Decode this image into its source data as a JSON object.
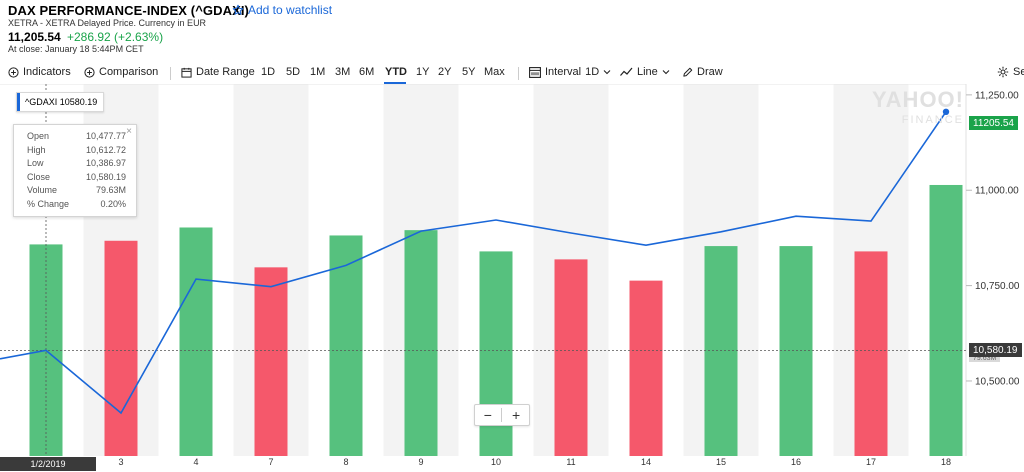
{
  "header": {
    "title": "DAX PERFORMANCE-INDEX (^GDAXI)",
    "watchlist_label": "Add to watchlist",
    "subtitle": "XETRA - XETRA Delayed Price. Currency in EUR",
    "price": "11,205.54",
    "change": "+286.92 (+2.63%)",
    "close_time": "At close: January 18 5:44PM CET"
  },
  "toolbar": {
    "indicators": "Indicators",
    "comparison": "Comparison",
    "date_range": "Date Range",
    "ranges": [
      "1D",
      "5D",
      "1M",
      "3M",
      "6M",
      "YTD",
      "1Y",
      "2Y",
      "5Y",
      "Max"
    ],
    "selected_range": "YTD",
    "interval": "Interval",
    "interval_value": "1D",
    "line": "Line",
    "draw": "Draw",
    "settings": "Se"
  },
  "legend": {
    "label": "^GDAXI 10580.19"
  },
  "tooltip": {
    "rows": [
      {
        "k": "Open",
        "v": "10,477.77"
      },
      {
        "k": "High",
        "v": "10,612.72"
      },
      {
        "k": "Low",
        "v": "10,386.97"
      },
      {
        "k": "Close",
        "v": "10,580.19"
      },
      {
        "k": "Volume",
        "v": "79.63M"
      },
      {
        "k": "% Change",
        "v": "0.20%"
      }
    ],
    "close_glyph": "×"
  },
  "watermark": {
    "top": "YAHOO!",
    "bottom": "FINANCE"
  },
  "tags": {
    "last_price": "11205.54",
    "crosshair_price": "10,580.19",
    "crosshair_volume": "79.63M",
    "crosshair_date": "1/2/2019"
  },
  "zoom": {
    "minus": "−",
    "plus": "+"
  },
  "colors": {
    "line": "#1a67d8",
    "up": "#56c17e",
    "down": "#f5586b",
    "band": "#f3f3f3",
    "last_tag": "#1aa34a"
  },
  "chart_data": {
    "type": "line",
    "title": "DAX PERFORMANCE-INDEX (^GDAXI)",
    "categories": [
      "1/2/2019",
      "3",
      "4",
      "7",
      "8",
      "9",
      "10",
      "11",
      "14",
      "15",
      "16",
      "17",
      "18"
    ],
    "series": [
      {
        "name": "^GDAXI",
        "values": [
          10580.19,
          10416,
          10767,
          10747,
          10803,
          10893,
          10922,
          10888,
          10856,
          10891,
          10932,
          10919,
          11205.54
        ]
      }
    ],
    "leading_value": 10558,
    "volume": {
      "direction": [
        "up",
        "down",
        "up",
        "down",
        "up",
        "up",
        "up",
        "down",
        "down",
        "up",
        "up",
        "down",
        "up"
      ],
      "values": [
        79.63,
        81,
        86,
        71,
        83,
        85,
        77,
        74,
        66,
        79,
        79,
        77,
        102
      ]
    },
    "y_ticks": [
      10500,
      10750,
      11000,
      11250
    ],
    "y_tick_labels": [
      "10,500.00",
      "10,750.00",
      "11,000.00",
      "11,250.00"
    ],
    "ylim": [
      10303.3,
      11278.5
    ],
    "volume_lim": [
      0,
      140
    ],
    "xlabel": "",
    "ylabel": "",
    "grid": "alternating bands",
    "legend": "top-left"
  }
}
